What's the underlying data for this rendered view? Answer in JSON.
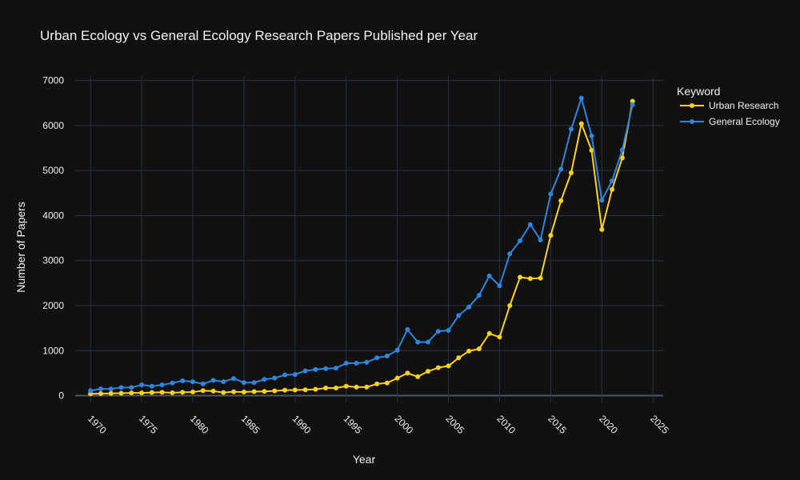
{
  "chart_data": {
    "type": "line",
    "title": "Urban Ecology vs General Ecology Research Papers Published per Year",
    "xlabel": "Year",
    "ylabel": "Number of Papers",
    "xlim": [
      1968.5,
      2026
    ],
    "ylim": [
      -150,
      7100
    ],
    "xticks": [
      1970,
      1975,
      1980,
      1985,
      1990,
      1995,
      2000,
      2005,
      2010,
      2015,
      2020,
      2025
    ],
    "yticks": [
      0,
      1000,
      2000,
      3000,
      4000,
      5000,
      6000,
      7000
    ],
    "grid": true,
    "legend": {
      "title": "Keyword",
      "placement": "top-right"
    },
    "x": [
      1970,
      1971,
      1972,
      1973,
      1974,
      1975,
      1976,
      1977,
      1978,
      1979,
      1980,
      1981,
      1982,
      1983,
      1984,
      1985,
      1986,
      1987,
      1988,
      1989,
      1990,
      1991,
      1992,
      1993,
      1994,
      1995,
      1996,
      1997,
      1998,
      1999,
      2000,
      2001,
      2002,
      2003,
      2004,
      2005,
      2006,
      2007,
      2008,
      2009,
      2010,
      2011,
      2012,
      2013,
      2014,
      2015,
      2016,
      2017,
      2018,
      2019,
      2020,
      2021,
      2022,
      2023
    ],
    "series": [
      {
        "name": "Urban Research",
        "color": "#FFD21A",
        "values": [
          40,
          45,
          50,
          55,
          60,
          60,
          70,
          75,
          65,
          75,
          80,
          110,
          100,
          70,
          85,
          80,
          90,
          95,
          105,
          120,
          125,
          130,
          140,
          170,
          170,
          210,
          190,
          190,
          260,
          280,
          390,
          500,
          420,
          540,
          620,
          660,
          840,
          990,
          1040,
          1380,
          1300,
          2000,
          2630,
          2600,
          2610,
          3560,
          4330,
          4950,
          6040,
          5450,
          3690,
          4580,
          5280,
          6540
        ]
      },
      {
        "name": "General Ecology",
        "color": "#2E86DE",
        "values": [
          110,
          150,
          150,
          180,
          180,
          240,
          210,
          240,
          280,
          330,
          310,
          260,
          340,
          310,
          380,
          290,
          290,
          360,
          390,
          460,
          470,
          550,
          580,
          600,
          610,
          720,
          720,
          740,
          840,
          880,
          1010,
          1470,
          1190,
          1190,
          1430,
          1450,
          1780,
          1970,
          2230,
          2660,
          2440,
          3150,
          3440,
          3800,
          3460,
          4480,
          5030,
          5920,
          6610,
          5770,
          4340,
          4770,
          5460,
          6460
        ]
      }
    ]
  }
}
